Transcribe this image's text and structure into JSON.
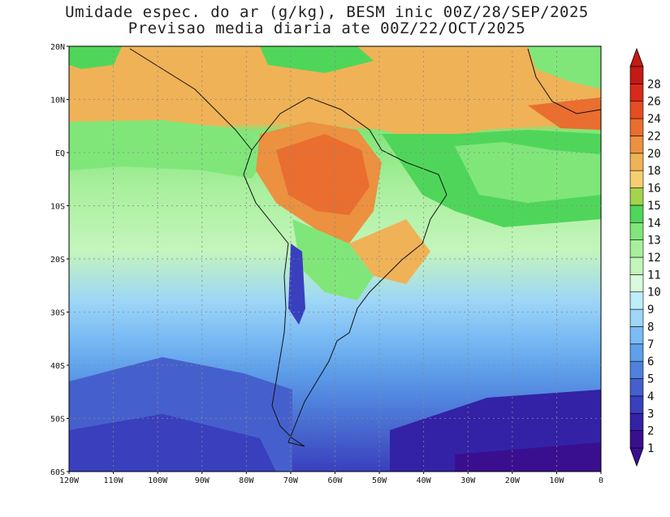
{
  "title_line1": "Umidade espec. do ar (g/kg), BESM inic 00Z/28/SEP/2025",
  "title_line2": "Previsao media diaria ate 00Z/22/OCT/2025",
  "lat_labels": [
    "20N",
    "10N",
    "EQ",
    "10S",
    "20S",
    "30S",
    "40S",
    "50S",
    "60S"
  ],
  "lon_labels": [
    "120W",
    "110W",
    "100W",
    "90W",
    "80W",
    "70W",
    "60W",
    "50W",
    "40W",
    "30W",
    "20W",
    "10W",
    "0"
  ],
  "colorbar": {
    "labels": [
      "1",
      "2",
      "3",
      "4",
      "5",
      "6",
      "7",
      "8",
      "9",
      "10",
      "11",
      "12",
      "13",
      "14",
      "15",
      "16",
      "18",
      "20",
      "22",
      "24",
      "26",
      "28"
    ],
    "colors": [
      "#3a0f8f",
      "#3322a6",
      "#3a3fbe",
      "#4560cc",
      "#4f80dc",
      "#5fa0ea",
      "#7cbcf4",
      "#9dd6f7",
      "#bdeefa",
      "#d8fadd",
      "#c4f5bc",
      "#a8ef9c",
      "#80e67a",
      "#4fd65a",
      "#a4d34e",
      "#f3cf71",
      "#f0b257",
      "#eb9140",
      "#ea6e2f",
      "#e44c22",
      "#d82a1b",
      "#c41a14"
    ]
  }
}
